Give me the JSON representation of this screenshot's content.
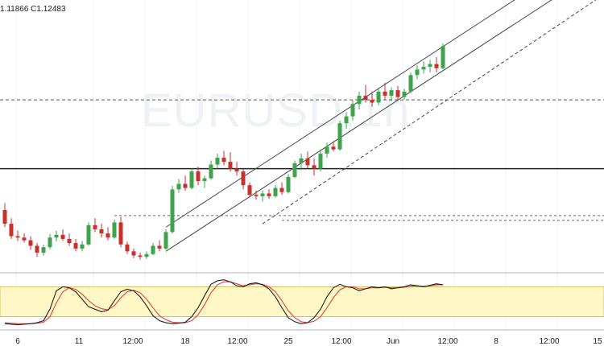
{
  "readout": {
    "text": "1.11866  C1.12483"
  },
  "watermark": {
    "symbol": "EURUSD,1h"
  },
  "colors": {
    "up": "#26a69a",
    "up_body": "#3fa34d",
    "down": "#c9302c",
    "grid": "#f0f3fa",
    "stoch_k": "#1f1f1f",
    "stoch_d": "#e0453a",
    "zone_fill": "#fff7c6",
    "zone_border": "#c8b24a"
  },
  "chart_data": {
    "type": "candlestick",
    "title": "",
    "xlabel": "",
    "ylabel": "",
    "x_ticks": [
      "6",
      "11",
      "12:00",
      "18",
      "12:00",
      "25",
      "12:00",
      "Jun",
      "12:00",
      "8",
      "12:00",
      "15"
    ],
    "candles": [
      {
        "o": 1.114,
        "h": 1.115,
        "l": 1.1115,
        "c": 1.112
      },
      {
        "o": 1.112,
        "h": 1.1128,
        "l": 1.1098,
        "c": 1.1102
      },
      {
        "o": 1.1102,
        "h": 1.111,
        "l": 1.1095,
        "c": 1.11
      },
      {
        "o": 1.11,
        "h": 1.1106,
        "l": 1.1093,
        "c": 1.1096
      },
      {
        "o": 1.1096,
        "h": 1.1102,
        "l": 1.1082,
        "c": 1.1088
      },
      {
        "o": 1.1088,
        "h": 1.1092,
        "l": 1.1072,
        "c": 1.1078
      },
      {
        "o": 1.1078,
        "h": 1.109,
        "l": 1.1074,
        "c": 1.1086
      },
      {
        "o": 1.1086,
        "h": 1.1105,
        "l": 1.1083,
        "c": 1.11
      },
      {
        "o": 1.11,
        "h": 1.111,
        "l": 1.1094,
        "c": 1.1104
      },
      {
        "o": 1.1104,
        "h": 1.1112,
        "l": 1.1095,
        "c": 1.1098
      },
      {
        "o": 1.1098,
        "h": 1.1106,
        "l": 1.1088,
        "c": 1.1092
      },
      {
        "o": 1.1092,
        "h": 1.1098,
        "l": 1.108,
        "c": 1.1084
      },
      {
        "o": 1.1084,
        "h": 1.1095,
        "l": 1.108,
        "c": 1.109
      },
      {
        "o": 1.109,
        "h": 1.1122,
        "l": 1.1088,
        "c": 1.1118
      },
      {
        "o": 1.1118,
        "h": 1.1128,
        "l": 1.1108,
        "c": 1.1112
      },
      {
        "o": 1.1112,
        "h": 1.112,
        "l": 1.11,
        "c": 1.1106
      },
      {
        "o": 1.1106,
        "h": 1.1115,
        "l": 1.1096,
        "c": 1.11
      },
      {
        "o": 1.11,
        "h": 1.1126,
        "l": 1.1098,
        "c": 1.1122
      },
      {
        "o": 1.1122,
        "h": 1.113,
        "l": 1.1086,
        "c": 1.109
      },
      {
        "o": 1.109,
        "h": 1.1094,
        "l": 1.1076,
        "c": 1.108
      },
      {
        "o": 1.108,
        "h": 1.1084,
        "l": 1.107,
        "c": 1.1074
      },
      {
        "o": 1.1074,
        "h": 1.1078,
        "l": 1.1068,
        "c": 1.1072
      },
      {
        "o": 1.1072,
        "h": 1.108,
        "l": 1.1069,
        "c": 1.1076
      },
      {
        "o": 1.1076,
        "h": 1.1092,
        "l": 1.1074,
        "c": 1.1088
      },
      {
        "o": 1.1088,
        "h": 1.1096,
        "l": 1.108,
        "c": 1.1084
      },
      {
        "o": 1.1084,
        "h": 1.1112,
        "l": 1.1082,
        "c": 1.1108
      },
      {
        "o": 1.1108,
        "h": 1.1175,
        "l": 1.1106,
        "c": 1.117
      },
      {
        "o": 1.117,
        "h": 1.1185,
        "l": 1.1165,
        "c": 1.1178
      },
      {
        "o": 1.1178,
        "h": 1.119,
        "l": 1.1168,
        "c": 1.1172
      },
      {
        "o": 1.1172,
        "h": 1.12,
        "l": 1.117,
        "c": 1.1196
      },
      {
        "o": 1.1196,
        "h": 1.1203,
        "l": 1.1176,
        "c": 1.1182
      },
      {
        "o": 1.1182,
        "h": 1.119,
        "l": 1.1172,
        "c": 1.1186
      },
      {
        "o": 1.1186,
        "h": 1.1212,
        "l": 1.1184,
        "c": 1.1206
      },
      {
        "o": 1.1206,
        "h": 1.1222,
        "l": 1.12,
        "c": 1.1216
      },
      {
        "o": 1.1216,
        "h": 1.1226,
        "l": 1.1205,
        "c": 1.121
      },
      {
        "o": 1.121,
        "h": 1.1224,
        "l": 1.1196,
        "c": 1.12
      },
      {
        "o": 1.12,
        "h": 1.121,
        "l": 1.119,
        "c": 1.1196
      },
      {
        "o": 1.1196,
        "h": 1.12,
        "l": 1.117,
        "c": 1.1176
      },
      {
        "o": 1.1176,
        "h": 1.118,
        "l": 1.1158,
        "c": 1.1162
      },
      {
        "o": 1.1162,
        "h": 1.1168,
        "l": 1.1155,
        "c": 1.116
      },
      {
        "o": 1.116,
        "h": 1.1168,
        "l": 1.1152,
        "c": 1.1164
      },
      {
        "o": 1.1164,
        "h": 1.117,
        "l": 1.1156,
        "c": 1.116
      },
      {
        "o": 1.116,
        "h": 1.1176,
        "l": 1.1158,
        "c": 1.1172
      },
      {
        "o": 1.1172,
        "h": 1.118,
        "l": 1.1162,
        "c": 1.1166
      },
      {
        "o": 1.1166,
        "h": 1.1192,
        "l": 1.1164,
        "c": 1.1188
      },
      {
        "o": 1.1188,
        "h": 1.1212,
        "l": 1.1186,
        "c": 1.1208
      },
      {
        "o": 1.1208,
        "h": 1.1222,
        "l": 1.1198,
        "c": 1.1215
      },
      {
        "o": 1.1215,
        "h": 1.1225,
        "l": 1.12,
        "c": 1.1205
      },
      {
        "o": 1.1205,
        "h": 1.1215,
        "l": 1.119,
        "c": 1.12
      },
      {
        "o": 1.12,
        "h": 1.1228,
        "l": 1.1196,
        "c": 1.1222
      },
      {
        "o": 1.1222,
        "h": 1.1238,
        "l": 1.1216,
        "c": 1.1232
      },
      {
        "o": 1.1232,
        "h": 1.124,
        "l": 1.1225,
        "c": 1.1228
      },
      {
        "o": 1.1228,
        "h": 1.127,
        "l": 1.1226,
        "c": 1.1266
      },
      {
        "o": 1.1266,
        "h": 1.1282,
        "l": 1.1258,
        "c": 1.1276
      },
      {
        "o": 1.1276,
        "h": 1.13,
        "l": 1.127,
        "c": 1.1294
      },
      {
        "o": 1.1294,
        "h": 1.1312,
        "l": 1.1286,
        "c": 1.1306
      },
      {
        "o": 1.1306,
        "h": 1.1322,
        "l": 1.1296,
        "c": 1.13
      },
      {
        "o": 1.13,
        "h": 1.1312,
        "l": 1.129,
        "c": 1.1296
      },
      {
        "o": 1.1296,
        "h": 1.1316,
        "l": 1.1292,
        "c": 1.1312
      },
      {
        "o": 1.1312,
        "h": 1.1325,
        "l": 1.13,
        "c": 1.1306
      },
      {
        "o": 1.1306,
        "h": 1.1318,
        "l": 1.1298,
        "c": 1.1314
      },
      {
        "o": 1.1314,
        "h": 1.132,
        "l": 1.13,
        "c": 1.1304
      },
      {
        "o": 1.1304,
        "h": 1.1316,
        "l": 1.13,
        "c": 1.1312
      },
      {
        "o": 1.1312,
        "h": 1.134,
        "l": 1.131,
        "c": 1.1336
      },
      {
        "o": 1.1336,
        "h": 1.135,
        "l": 1.133,
        "c": 1.1344
      },
      {
        "o": 1.1344,
        "h": 1.1356,
        "l": 1.1338,
        "c": 1.1348
      },
      {
        "o": 1.1348,
        "h": 1.1358,
        "l": 1.134,
        "c": 1.1352
      },
      {
        "o": 1.1352,
        "h": 1.1362,
        "l": 1.134,
        "c": 1.1346
      },
      {
        "o": 1.1346,
        "h": 1.1382,
        "l": 1.1344,
        "c": 1.1378
      }
    ],
    "levels": {
      "resistance": 1.13,
      "support": 1.12,
      "range_high": 1.1132,
      "range_low": 1.1125
    },
    "channel": [
      {
        "from": [
          25,
          1.1115
        ],
        "to": [
          75,
          1.142
        ]
      },
      {
        "from": [
          25,
          1.108
        ],
        "to": [
          75,
          1.1385
        ]
      },
      {
        "from": [
          40,
          1.112
        ],
        "to": [
          75,
          1.134
        ]
      }
    ],
    "stochastic": {
      "ylim": [
        0,
        100
      ],
      "zone": [
        20,
        80
      ],
      "k": [
        6,
        5,
        4,
        5,
        6,
        8,
        12,
        35,
        72,
        80,
        78,
        70,
        55,
        40,
        35,
        30,
        33,
        52,
        70,
        75,
        72,
        60,
        42,
        22,
        12,
        8,
        6,
        7,
        9,
        20,
        38,
        62,
        85,
        92,
        94,
        90,
        82,
        80,
        86,
        88,
        84,
        76,
        60,
        38,
        18,
        10,
        6,
        8,
        18,
        35,
        60,
        78,
        85,
        80,
        78,
        72,
        76,
        80,
        78,
        80,
        76,
        78,
        80,
        84,
        82,
        80,
        83,
        86,
        84
      ],
      "d": [
        8,
        7,
        6,
        6,
        6,
        7,
        9,
        20,
        48,
        70,
        78,
        75,
        65,
        52,
        42,
        36,
        34,
        42,
        58,
        70,
        73,
        68,
        55,
        38,
        22,
        14,
        9,
        8,
        8,
        12,
        24,
        44,
        68,
        84,
        90,
        90,
        86,
        82,
        84,
        86,
        85,
        80,
        70,
        52,
        32,
        18,
        10,
        8,
        11,
        20,
        38,
        58,
        74,
        80,
        80,
        76,
        76,
        78,
        78,
        79,
        78,
        78,
        79,
        81,
        82,
        81,
        82,
        84,
        84
      ]
    }
  }
}
